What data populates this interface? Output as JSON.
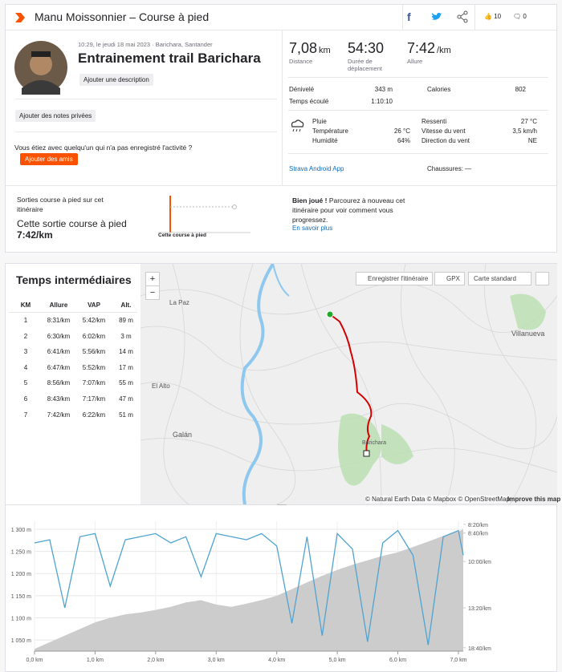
{
  "header": {
    "title": "Manu Moissonnier – Course à pied",
    "kudos": "10",
    "comments": "0"
  },
  "activity": {
    "meta": "10:29, le jeudi 18 mai 2023 · Barichara, Santander",
    "name": "Entrainement trail Barichara",
    "add_description": "Ajouter une description",
    "add_notes": "Ajouter des notes privées",
    "friends_prompt": "Vous étiez avec quelqu'un qui n'a pas enregistré l'activité ?",
    "add_friends": "Ajouter des amis"
  },
  "stats": {
    "primary": [
      {
        "value": "7,08",
        "unit": "km",
        "label": "Distance"
      },
      {
        "value": "54:30",
        "label": "Durée de déplacement"
      },
      {
        "value": "7:42",
        "unit": "/km",
        "label": "Allure"
      }
    ],
    "details": [
      [
        "Dénivelé",
        "343 m"
      ],
      [
        "Calories",
        "802"
      ],
      [
        "Temps écoulé",
        "1:10:10"
      ]
    ]
  },
  "weather": {
    "condition": "Pluie",
    "left": [
      [
        "Température",
        "26 °C"
      ],
      [
        "Humidité",
        "64%"
      ]
    ],
    "right": [
      [
        "Ressenti",
        "27 °C"
      ],
      [
        "Vitesse du vent",
        "3,5 km/h"
      ],
      [
        "Direction du vent",
        "NE"
      ]
    ]
  },
  "device": "Strava Android App",
  "shoes": "Chaussures: —",
  "comparison": {
    "label": "Sorties course à pied sur cet itinéraire",
    "this_label": "Cette sortie course à pied",
    "this_pace": "7:42/km",
    "chart_label": "Cette course à pied",
    "message_bold": "Bien joué !",
    "message": "Parcourez à nouveau cet itinéraire pour voir comment vous progressez.",
    "link": "En savoir plus"
  },
  "splits": {
    "title": "Temps intermédiaires",
    "headers": [
      "KM",
      "Allure",
      "VAP",
      "Alt."
    ],
    "rows": [
      [
        "1",
        "8:31/km",
        "5:42/km",
        "89 m"
      ],
      [
        "2",
        "6:30/km",
        "6:02/km",
        "3 m"
      ],
      [
        "3",
        "6:41/km",
        "5:56/km",
        "14 m"
      ],
      [
        "4",
        "6:47/km",
        "5:52/km",
        "17 m"
      ],
      [
        "5",
        "8:56/km",
        "7:07/km",
        "55 m"
      ],
      [
        "6",
        "8:43/km",
        "7:17/km",
        "47 m"
      ],
      [
        "7",
        "7:42/km",
        "6:22/km",
        "51 m"
      ]
    ]
  },
  "map": {
    "zoom_in": "+",
    "zoom_out": "−",
    "save": "Enregistrer l'itinéraire",
    "gpx": "GPX",
    "style": "Carte standard",
    "places": [
      "La Paz",
      "El Alto",
      "Galán",
      "Villanueva",
      "Barichara"
    ],
    "attribution": "© Natural Earth Data © Mapbox © OpenStreetMap",
    "improve": "Improve this map"
  },
  "chart_data": {
    "type": "area",
    "x": [
      0,
      0.25,
      0.5,
      0.75,
      1.0,
      1.25,
      1.5,
      1.75,
      2.0,
      2.25,
      2.5,
      2.75,
      3.0,
      3.25,
      3.5,
      3.75,
      4.0,
      4.25,
      4.5,
      4.75,
      5.0,
      5.25,
      5.5,
      5.75,
      6.0,
      6.25,
      6.5,
      6.75,
      7.0,
      7.08
    ],
    "series": [
      {
        "color": "#cccccc",
        "values": [
          1030,
          1045,
          1060,
          1075,
          1090,
          1100,
          1108,
          1112,
          1118,
          1125,
          1135,
          1140,
          1130,
          1125,
          1132,
          1140,
          1150,
          1165,
          1180,
          1195,
          1208,
          1220,
          1230,
          1240,
          1248,
          1260,
          1272,
          1285,
          1295,
          1300
        ]
      },
      {
        "color": "#4fa3d1",
        "axis": "y2",
        "values": [
          6.6,
          6.7,
          4.5,
          6.8,
          6.9,
          5.2,
          6.7,
          6.8,
          6.9,
          6.6,
          6.8,
          5.5,
          6.9,
          6.8,
          6.7,
          6.9,
          6.5,
          4.0,
          6.8,
          3.6,
          6.9,
          6.4,
          3.4,
          6.6,
          7.0,
          6.2,
          3.3,
          6.8,
          7.0,
          6.2
        ]
      }
    ],
    "xlim": [
      0,
      7.08
    ],
    "xticks": [
      {
        "value": 0,
        "label": "0,0 km"
      },
      {
        "value": 1,
        "label": "1,0 km"
      },
      {
        "value": 2,
        "label": "2,0 km"
      },
      {
        "value": 3,
        "label": "3,0 km"
      },
      {
        "value": 4,
        "label": "4,0 km"
      },
      {
        "value": 5,
        "label": "5,0 km"
      },
      {
        "value": 6,
        "label": "6,0 km"
      },
      {
        "value": 7,
        "label": "7,0 km"
      }
    ],
    "ylim": [
      1025,
      1318
    ],
    "yticks": [
      {
        "value": 1050,
        "label": "1 050 m"
      },
      {
        "value": 1100,
        "label": "1 100 m"
      },
      {
        "value": 1150,
        "label": "1 150 m"
      },
      {
        "value": 1200,
        "label": "1 200 m"
      },
      {
        "value": 1250,
        "label": "1 250 m"
      },
      {
        "value": 1300,
        "label": "1 300 m"
      }
    ],
    "y2lim": [
      3.1,
      7.3
    ],
    "y2ticks": [
      {
        "value": 3.21,
        "label": "18:40/km"
      },
      {
        "value": 4.5,
        "label": "13:20/km"
      },
      {
        "value": 6,
        "label": "10:00/km"
      },
      {
        "value": 6.92,
        "label": "8:40/km"
      },
      {
        "value": 7.2,
        "label": "8:20/km"
      }
    ],
    "grid": true
  }
}
